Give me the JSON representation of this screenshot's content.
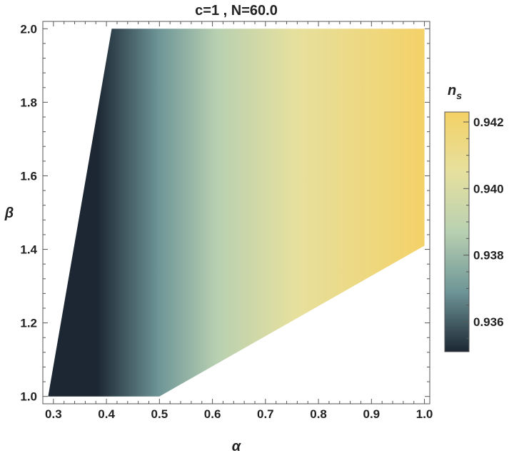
{
  "chart_data": {
    "type": "heatmap",
    "title": "c=1 , N=60.0",
    "xlabel": "α",
    "ylabel": "β",
    "colorbar_label": "n",
    "colorbar_label_subscript": "s",
    "xlim": [
      0.28,
      1.01
    ],
    "ylim": [
      0.98,
      2.02
    ],
    "x_ticks": [
      "0.3",
      "0.4",
      "0.5",
      "0.6",
      "0.7",
      "0.8",
      "0.9",
      "1.0"
    ],
    "y_ticks": [
      "1.0",
      "1.2",
      "1.4",
      "1.6",
      "1.8",
      "2.0"
    ],
    "colorbar_ticks": [
      "0.936",
      "0.938",
      "0.940",
      "0.942"
    ],
    "colorbar_range": [
      0.9351,
      0.9423
    ],
    "colormap": [
      "#1c2733",
      "#6e9597",
      "#b8d0b1",
      "#e6e09e",
      "#f4d166"
    ],
    "region": [
      [
        0.29,
        1.0
      ],
      [
        0.41,
        2.0
      ],
      [
        1.0,
        2.0
      ],
      [
        1.0,
        1.41
      ],
      [
        0.5,
        1.0
      ]
    ],
    "samples": [
      {
        "alpha": 0.3,
        "beta": 1.0,
        "n_s": 0.9354
      },
      {
        "alpha": 0.4,
        "beta": 1.6,
        "n_s": 0.9358
      },
      {
        "alpha": 0.5,
        "beta": 1.8,
        "n_s": 0.9381
      },
      {
        "alpha": 0.6,
        "beta": 1.5,
        "n_s": 0.9402
      },
      {
        "alpha": 0.7,
        "beta": 1.7,
        "n_s": 0.9407
      },
      {
        "alpha": 0.8,
        "beta": 1.6,
        "n_s": 0.9413
      },
      {
        "alpha": 0.9,
        "beta": 1.5,
        "n_s": 0.9418
      },
      {
        "alpha": 1.0,
        "beta": 1.45,
        "n_s": 0.9421
      }
    ]
  }
}
